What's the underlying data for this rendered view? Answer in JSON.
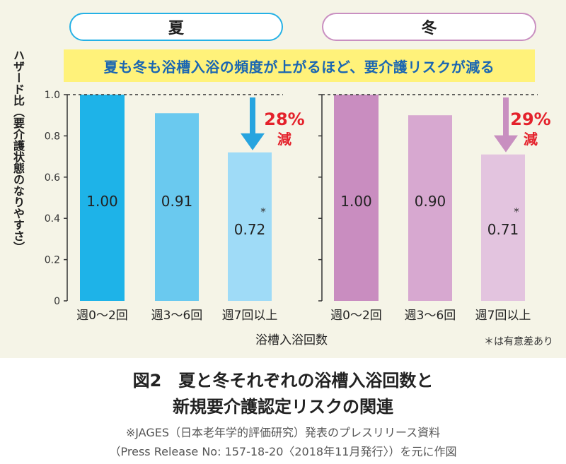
{
  "chart_data": [
    {
      "type": "bar",
      "title": "夏",
      "categories": [
        "週0～2回",
        "週3～6回",
        "週7回以上"
      ],
      "values": [
        1.0,
        0.91,
        0.72
      ],
      "value_labels": [
        "1.00",
        "0.91",
        "0.72"
      ],
      "significance_marks": [
        "",
        "",
        "*"
      ],
      "ylim": [
        0,
        1.0
      ],
      "yticks": [
        "0",
        "0.2",
        "0.4",
        "0.6",
        "0.8",
        "1.0"
      ],
      "reference_line": 1.0,
      "bar_colors": [
        "#1eb3e8",
        "#6ac9ef",
        "#9fdbf7"
      ],
      "arrow_color": "#27a4df",
      "reduction_label": "28%",
      "reduction_suffix": "減"
    },
    {
      "type": "bar",
      "title": "冬",
      "categories": [
        "週0～2回",
        "週3～6回",
        "週7回以上"
      ],
      "values": [
        1.0,
        0.9,
        0.71
      ],
      "value_labels": [
        "1.00",
        "0.90",
        "0.71"
      ],
      "significance_marks": [
        "",
        "",
        "*"
      ],
      "ylim": [
        0,
        1.0
      ],
      "yticks": [
        "0",
        "0.2",
        "0.4",
        "0.6",
        "0.8",
        "1.0"
      ],
      "reference_line": 1.0,
      "bar_colors": [
        "#c98dc0",
        "#d7a8d0",
        "#e3c4df"
      ],
      "arrow_color": "#c88fc0",
      "reduction_label": "29%",
      "reduction_suffix": "減"
    }
  ],
  "headline": "夏も冬も浴槽入浴の頻度が上がるほど、要介護リスクが減る",
  "ylabel": "ハザード比（要介護状態のなりやすさ）",
  "xlabel": "浴槽入浴回数",
  "significance_note": "＊は有意差あり",
  "caption": {
    "line1": "図2　夏と冬それぞれの浴槽入浴回数と",
    "line2": "新規要介護認定リスクの関連"
  },
  "source": {
    "line1": "※JAGES（日本老年学的評価研究）発表のプレスリリース資料",
    "line2": "（Press Release No: 157-18-20〈2018年11月発行〉）を元に作図"
  },
  "colors": {
    "panel_background": "#f5f4e7",
    "headline_background": "#fff27a",
    "headline_text": "#1a66b2",
    "reduction_text": "#e4212b",
    "summer_border": "#25b1e6",
    "winter_border": "#c98fc1"
  }
}
